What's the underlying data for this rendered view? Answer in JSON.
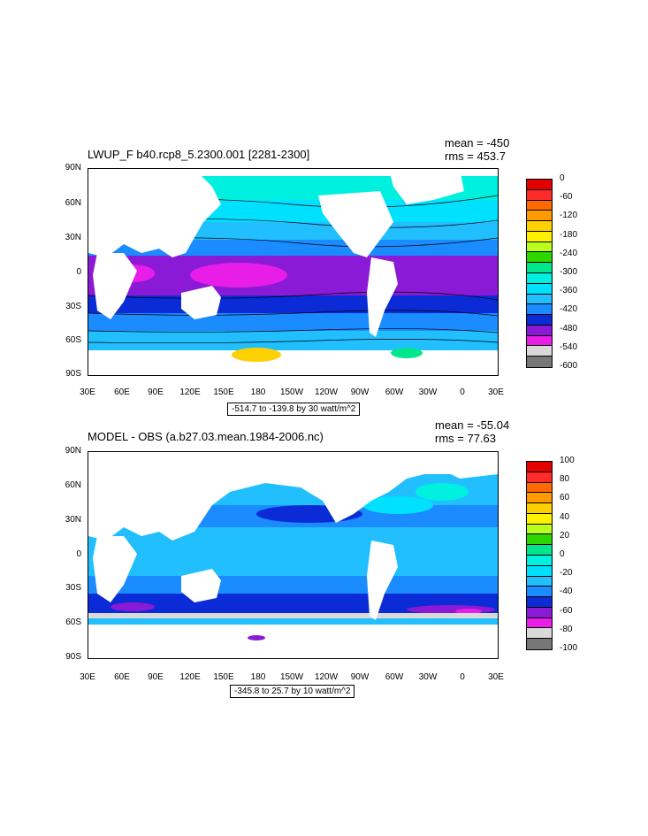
{
  "panels": [
    {
      "title": "LWUP_F b40.rcp8_5.2300.001 [2281-2300]",
      "mean": "mean = -450",
      "rms": "rms = 453.7",
      "range_text": "-514.7 to -139.8 by 30 watt/m^2",
      "lat_labels": [
        "90N",
        "60N",
        "30N",
        "0",
        "30S",
        "60S",
        "90S"
      ],
      "lon_labels": [
        "30E",
        "60E",
        "90E",
        "120E",
        "150E",
        "180",
        "150W",
        "120W",
        "90W",
        "60W",
        "30W",
        "0",
        "30E"
      ],
      "colorbar_labels": [
        "0",
        "-60",
        "-120",
        "-180",
        "-240",
        "-300",
        "-360",
        "-420",
        "-480",
        "-540",
        "-600"
      ],
      "colorbar_colors": [
        "#e40000",
        "#ff2a2a",
        "#ff6a00",
        "#ff9a00",
        "#ffd000",
        "#fff000",
        "#b8ff1e",
        "#2ed600",
        "#00e68c",
        "#00f0e0",
        "#00e1ff",
        "#22bfff",
        "#1a8cff",
        "#0a2bd6",
        "#8a1ad6",
        "#e81ee8",
        "#d9d9d9",
        "#777777"
      ]
    },
    {
      "title": "MODEL - OBS (a.b27.03.mean.1984-2006.nc)",
      "mean": "mean = -55.04",
      "rms": "rms = 77.63",
      "range_text": "-345.8 to 25.7 by 10 watt/m^2",
      "lat_labels": [
        "90N",
        "60N",
        "30N",
        "0",
        "30S",
        "60S",
        "90S"
      ],
      "lon_labels": [
        "30E",
        "60E",
        "90E",
        "120E",
        "150E",
        "180",
        "150W",
        "120W",
        "90W",
        "60W",
        "30W",
        "0",
        "30E"
      ],
      "colorbar_labels": [
        "100",
        "80",
        "60",
        "40",
        "20",
        "0",
        "-20",
        "-40",
        "-60",
        "-80",
        "-100"
      ],
      "colorbar_colors": [
        "#e40000",
        "#ff2a2a",
        "#ff6a00",
        "#ff9a00",
        "#ffd000",
        "#fff000",
        "#b8ff1e",
        "#2ed600",
        "#00e68c",
        "#00f0e0",
        "#00e1ff",
        "#22bfff",
        "#1a8cff",
        "#0a2bd6",
        "#8a1ad6",
        "#e81ee8",
        "#d9d9d9",
        "#777777"
      ]
    }
  ]
}
